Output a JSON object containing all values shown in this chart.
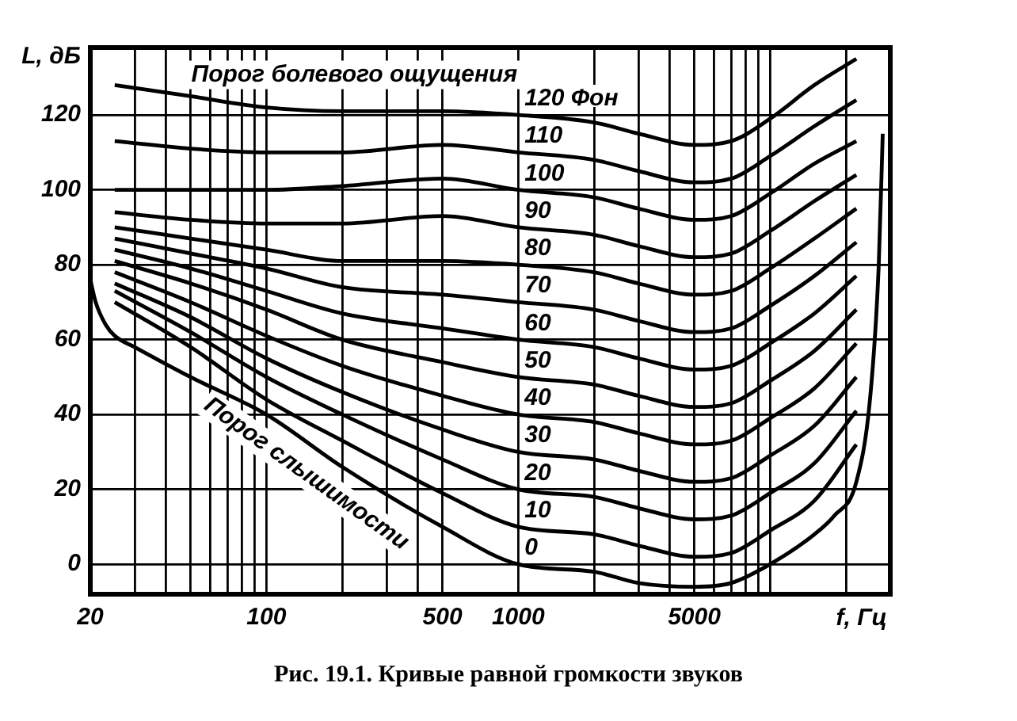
{
  "chart_data": {
    "type": "line",
    "title": "Рис. 19.1. Кривые равной громкости звуков",
    "xlabel": "f, Гц",
    "ylabel": "L, дБ",
    "log": "x",
    "grid": true,
    "marker": "none",
    "xlim": [
      20,
      30000
    ],
    "ylim": [
      -8,
      138
    ],
    "xticks": [
      20,
      {
        "value": 30,
        "label": null
      },
      {
        "value": 40,
        "label": null
      },
      {
        "value": 50,
        "label": null
      },
      {
        "value": 60,
        "label": null
      },
      {
        "value": 70,
        "label": null
      },
      {
        "value": 80,
        "label": null
      },
      {
        "value": 90,
        "label": null
      },
      100,
      {
        "value": 200,
        "label": null
      },
      {
        "value": 300,
        "label": null
      },
      {
        "value": 400,
        "label": null
      },
      500,
      1000,
      {
        "value": 2000,
        "label": null
      },
      {
        "value": 3000,
        "label": null
      },
      {
        "value": 4000,
        "label": null
      },
      5000,
      {
        "value": 6000,
        "label": null
      },
      {
        "value": 7000,
        "label": null
      },
      {
        "value": 8000,
        "label": null
      },
      {
        "value": 9000,
        "label": null
      },
      {
        "value": 10000,
        "label": null
      },
      {
        "value": 20000,
        "label": null
      }
    ],
    "yticks": [
      0,
      20,
      40,
      60,
      80,
      100,
      120
    ],
    "x": [
      25,
      50,
      100,
      200,
      500,
      1000,
      2000,
      3000,
      5000,
      7000,
      10000,
      15000,
      22000
    ],
    "series": [
      {
        "name": "120 Фон",
        "color": "#000000",
        "values": [
          128,
          125,
          122,
          121,
          121,
          120,
          118,
          115,
          112,
          113,
          119,
          128,
          135
        ]
      },
      {
        "name": "110",
        "color": "#000000",
        "values": [
          113,
          111,
          110,
          110,
          112,
          110,
          108,
          105,
          102,
          103,
          109,
          117,
          124
        ]
      },
      {
        "name": "100",
        "color": "#000000",
        "values": [
          100,
          100,
          100,
          101,
          103,
          100,
          98,
          95,
          92,
          93,
          99,
          107,
          113
        ]
      },
      {
        "name": "90",
        "color": "#000000",
        "values": [
          94,
          92,
          91,
          91,
          93,
          90,
          88,
          85,
          82,
          83,
          89,
          97,
          104
        ]
      },
      {
        "name": "80",
        "color": "#000000",
        "values": [
          90,
          87,
          84,
          81,
          81,
          80,
          78,
          75,
          72,
          73,
          79,
          87,
          95
        ]
      },
      {
        "name": "70",
        "color": "#000000",
        "values": [
          87,
          83,
          79,
          74,
          72,
          70,
          68,
          65,
          62,
          63,
          69,
          77,
          86
        ]
      },
      {
        "name": "60",
        "color": "#000000",
        "values": [
          84,
          79,
          73,
          67,
          63,
          60,
          58,
          55,
          52,
          53,
          59,
          67,
          77
        ]
      },
      {
        "name": "50",
        "color": "#000000",
        "values": [
          81,
          75,
          68,
          60,
          54,
          50,
          48,
          45,
          42,
          43,
          49,
          57,
          68
        ]
      },
      {
        "name": "40",
        "color": "#000000",
        "values": [
          78,
          70,
          61,
          53,
          45,
          40,
          38,
          35,
          32,
          33,
          39,
          47,
          59
        ]
      },
      {
        "name": "30",
        "color": "#000000",
        "values": [
          75,
          66,
          55,
          46,
          36,
          30,
          28,
          25,
          22,
          23,
          29,
          37,
          50
        ]
      },
      {
        "name": "20",
        "color": "#000000",
        "values": [
          73,
          62,
          50,
          40,
          28,
          20,
          18,
          15,
          12,
          13,
          19,
          27,
          41
        ]
      },
      {
        "name": "10",
        "color": "#000000",
        "values": [
          70,
          58,
          44,
          33,
          19,
          10,
          8,
          5,
          2,
          3,
          9,
          17,
          32
        ]
      },
      {
        "name": "0",
        "color": "#000000",
        "x": [
          20,
          21,
          23,
          25,
          30,
          50,
          100,
          200,
          500,
          1000,
          2000,
          3000,
          5000,
          7000,
          10000,
          15000,
          18000,
          22000,
          25000,
          27000,
          28000
        ],
        "values": [
          76,
          70,
          64,
          61,
          58,
          50,
          40,
          26,
          10,
          0,
          -2,
          -5,
          -6,
          -5,
          0,
          8,
          13,
          22,
          45,
          80,
          115
        ]
      }
    ],
    "annotations": [
      "Порог болевого ощущения",
      "Порог слышимости"
    ]
  }
}
